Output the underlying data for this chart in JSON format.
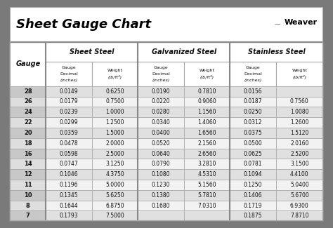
{
  "title": "Sheet Gauge Chart",
  "bg_outer": "#7a7a7a",
  "bg_white": "#ffffff",
  "bg_light_gray": "#e8e8e8",
  "bg_medium_gray": "#d0d0d0",
  "gauges": [
    "28",
    "26",
    "24",
    "22",
    "20",
    "18",
    "16",
    "14",
    "12",
    "11",
    "10",
    "8",
    "7"
  ],
  "sheet_steel": [
    [
      "0.0149",
      "0.6250"
    ],
    [
      "0.0179",
      "0.7500"
    ],
    [
      "0.0239",
      "1.0000"
    ],
    [
      "0.0299",
      "1.2500"
    ],
    [
      "0.0359",
      "1.5000"
    ],
    [
      "0.0478",
      "2.0000"
    ],
    [
      "0.0598",
      "2.5000"
    ],
    [
      "0.0747",
      "3.1250"
    ],
    [
      "0.1046",
      "4.3750"
    ],
    [
      "0.1196",
      "5.0000"
    ],
    [
      "0.1345",
      "5.6250"
    ],
    [
      "0.1644",
      "6.8750"
    ],
    [
      "0.1793",
      "7.5000"
    ]
  ],
  "galvanized_steel": [
    [
      "0.0190",
      "0.7810"
    ],
    [
      "0.0220",
      "0.9060"
    ],
    [
      "0.0280",
      "1.1560"
    ],
    [
      "0.0340",
      "1.4060"
    ],
    [
      "0.0400",
      "1.6560"
    ],
    [
      "0.0520",
      "2.1560"
    ],
    [
      "0.0640",
      "2.6560"
    ],
    [
      "0.0790",
      "3.2810"
    ],
    [
      "0.1080",
      "4.5310"
    ],
    [
      "0.1230",
      "5.1560"
    ],
    [
      "0.1380",
      "5.7810"
    ],
    [
      "0.1680",
      "7.0310"
    ],
    [
      "",
      ""
    ]
  ],
  "stainless_steel": [
    [
      "0.0156",
      ""
    ],
    [
      "0.0187",
      "0.7560"
    ],
    [
      "0.0250",
      "1.0080"
    ],
    [
      "0.0312",
      "1.2600"
    ],
    [
      "0.0375",
      "1.5120"
    ],
    [
      "0.0500",
      "2.0160"
    ],
    [
      "0.0625",
      "2.5200"
    ],
    [
      "0.0781",
      "3.1500"
    ],
    [
      "0.1094",
      "4.4100"
    ],
    [
      "0.1250",
      "5.0400"
    ],
    [
      "0.1406",
      "5.6700"
    ],
    [
      "0.1719",
      "6.9300"
    ],
    [
      "0.1875",
      "7.8710"
    ]
  ],
  "figsize": [
    4.74,
    3.25
  ],
  "dpi": 100
}
